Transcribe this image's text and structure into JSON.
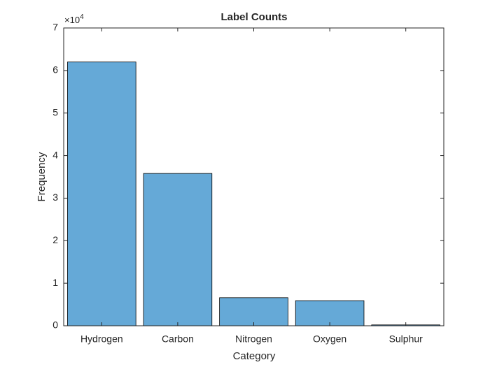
{
  "chart_data": {
    "type": "bar",
    "title": "Label Counts",
    "xlabel": "Category",
    "ylabel": "Frequency",
    "categories": [
      "Hydrogen",
      "Carbon",
      "Nitrogen",
      "Oxygen",
      "Sulphur"
    ],
    "values": [
      62000,
      35800,
      6600,
      5900,
      200
    ],
    "color": "#65a9d7",
    "ylim": [
      0,
      70000
    ],
    "yticks": [
      0,
      {
        "value": 10000,
        "label": "1"
      },
      {
        "value": 20000,
        "label": "2"
      },
      {
        "value": 30000,
        "label": "3"
      },
      {
        "value": 40000,
        "label": "4"
      },
      {
        "value": 50000,
        "label": "5"
      },
      {
        "value": 60000,
        "label": "6"
      },
      {
        "value": 70000,
        "label": "7"
      }
    ],
    "y_multiplier": {
      "base": "×10",
      "exponent": "4"
    },
    "box": true
  }
}
